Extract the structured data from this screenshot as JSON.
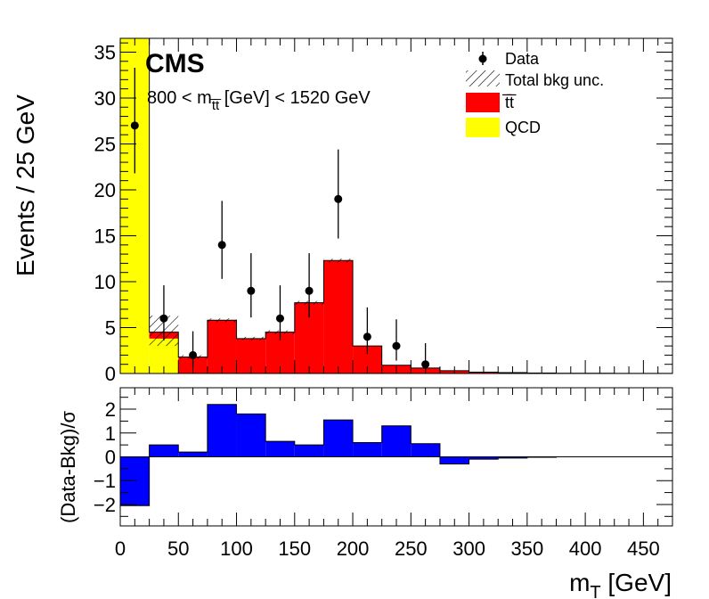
{
  "chart_data": [
    {
      "type": "bar",
      "subtype": "stacked-histogram",
      "bin_width": 25,
      "bin_edges": [
        0,
        25,
        50,
        75,
        100,
        125,
        150,
        175,
        200,
        225,
        250,
        275,
        300,
        325,
        350,
        375,
        400,
        425,
        450,
        475
      ],
      "xlim": [
        0,
        475
      ],
      "ylim": [
        0,
        36.5
      ],
      "xlabel": "m_T [GeV]",
      "ylabel": "Events / 25 GeV",
      "x_ticks": [
        0,
        50,
        100,
        150,
        200,
        250,
        300,
        350,
        400,
        450
      ],
      "y_ticks": [
        0,
        5,
        10,
        15,
        20,
        25,
        30,
        35
      ],
      "series": [
        {
          "name": "QCD",
          "color": "#ffff00",
          "values": [
            37,
            3.8,
            0,
            0,
            0,
            0,
            0,
            0,
            0,
            0,
            0,
            0,
            0,
            0,
            0,
            0,
            0,
            0,
            0
          ]
        },
        {
          "name": "t̅t̅",
          "color": "#ff0000",
          "values": [
            0,
            0.7,
            1.8,
            5.8,
            3.8,
            4.5,
            7.7,
            12.3,
            3.0,
            0.9,
            0.6,
            0.3,
            0.15,
            0.1,
            0.05,
            0.03,
            0.02,
            0.01,
            0.01
          ]
        }
      ],
      "data_points": {
        "name": "Data",
        "x": [
          12.5,
          37.5,
          62.5,
          87.5,
          112.5,
          137.5,
          162.5,
          187.5,
          212.5,
          237.5,
          262.5
        ],
        "y": [
          27,
          6,
          2,
          14,
          9,
          6,
          9,
          19,
          4,
          3,
          1
        ],
        "err_up": [
          6.3,
          3.6,
          2.6,
          4.8,
          4.1,
          3.6,
          4.1,
          5.4,
          3.2,
          2.9,
          2.3
        ],
        "err_down": [
          5.2,
          2.4,
          1.3,
          3.7,
          2.9,
          2.4,
          2.9,
          4.3,
          1.9,
          1.6,
          0.8
        ]
      },
      "uncertainty_band": {
        "name": "Total bkg unc.",
        "bins": [
          {
            "lo": 25,
            "hi": 50,
            "ymin": 3.0,
            "ymax": 6.3
          },
          {
            "lo": 50,
            "hi": 75,
            "ymin": 1.6,
            "ymax": 2.0
          },
          {
            "lo": 75,
            "hi": 100,
            "ymin": 5.6,
            "ymax": 6.0
          },
          {
            "lo": 100,
            "hi": 125,
            "ymin": 3.6,
            "ymax": 4.0
          },
          {
            "lo": 125,
            "hi": 150,
            "ymin": 4.3,
            "ymax": 4.7
          },
          {
            "lo": 150,
            "hi": 175,
            "ymin": 7.5,
            "ymax": 7.9
          },
          {
            "lo": 175,
            "hi": 200,
            "ymin": 12.1,
            "ymax": 12.5
          }
        ]
      },
      "legend": {
        "placement": "top-right",
        "entries": [
          "Data",
          "Total bkg unc.",
          "t̅t̅",
          "QCD"
        ]
      },
      "labels": {
        "experiment": "CMS",
        "selection_prefix": "800 < m",
        "selection_sub": "t̅t̅",
        "selection_suffix": " [GeV] < 1520 GeV"
      }
    },
    {
      "type": "bar",
      "subtype": "ratio-histogram",
      "bin_edges": [
        0,
        25,
        50,
        75,
        100,
        125,
        150,
        175,
        200,
        225,
        250,
        275,
        300,
        325,
        350,
        375,
        400,
        425,
        450,
        475
      ],
      "values": [
        -2.05,
        0.5,
        0.2,
        2.2,
        1.8,
        0.65,
        0.5,
        1.55,
        0.6,
        1.3,
        0.55,
        -0.3,
        -0.1,
        -0.05,
        -0.02,
        0,
        0,
        0,
        0
      ],
      "color": "#0000ff",
      "xlim": [
        0,
        475
      ],
      "ylim": [
        -2.9,
        2.9
      ],
      "y_ticks": [
        -2,
        -1,
        0,
        1,
        2
      ],
      "x_ticks": [
        0,
        50,
        100,
        150,
        200,
        250,
        300,
        350,
        400,
        450
      ],
      "ylabel": "(Data-Bkg)/σ",
      "xlabel": "m_T [GeV]"
    }
  ],
  "text": {
    "cms": "CMS",
    "sel_prefix": "800 < m",
    "sel_sub": "t̅t̅",
    "sel_suffix": " [GeV] < 1520 GeV",
    "leg_data": "Data",
    "leg_unc": "Total bkg unc.",
    "leg_tt": "t̅t̅",
    "leg_qcd": "QCD",
    "ylabel_main": "Events / 25 GeV",
    "ylabel_ratio": "(Data-Bkg)/σ",
    "xlabel_main": "m",
    "xlabel_sub": "T",
    "xlabel_unit": " [GeV]"
  }
}
